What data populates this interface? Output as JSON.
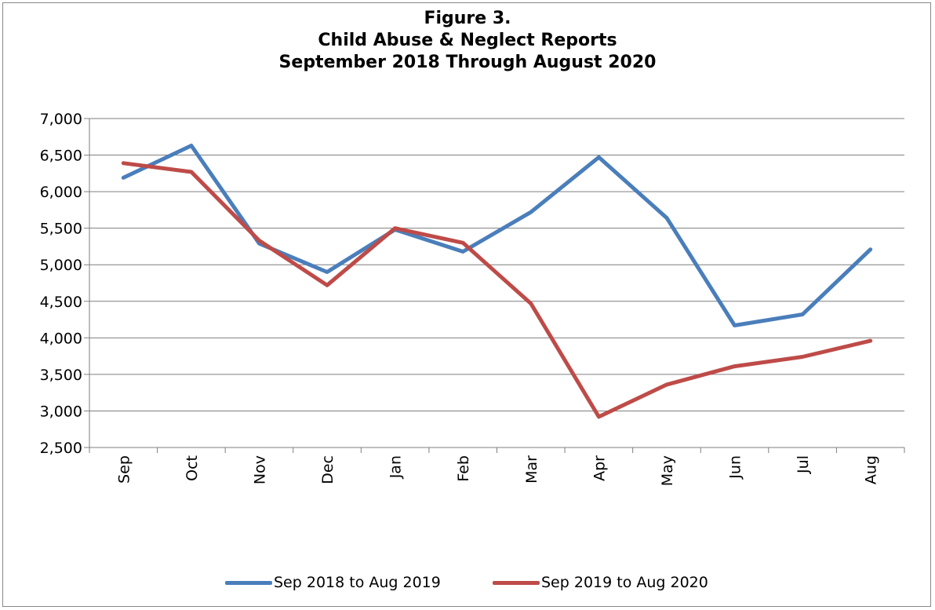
{
  "chart_data": {
    "type": "line",
    "title_lines": [
      "Figure 3.",
      "Child Abuse & Neglect Reports",
      "September 2018 Through August 2020"
    ],
    "categories": [
      "Sep",
      "Oct",
      "Nov",
      "Dec",
      "Jan",
      "Feb",
      "Mar",
      "Apr",
      "May",
      "Jun",
      "Jul",
      "Aug"
    ],
    "series": [
      {
        "name": "Sep 2018 to Aug 2019",
        "color": "#4A7EBB",
        "values": [
          6190,
          6630,
          5290,
          4900,
          5480,
          5180,
          5720,
          6470,
          5640,
          4170,
          4320,
          5210
        ]
      },
      {
        "name": "Sep 2019 to Aug 2020",
        "color": "#BE4B48",
        "values": [
          6390,
          6270,
          5330,
          4720,
          5500,
          5300,
          4470,
          2920,
          3360,
          3610,
          3740,
          3960
        ]
      }
    ],
    "ylim": [
      2500,
      7000
    ],
    "ytick_step": 500,
    "ytick_labels": [
      "2,500",
      "3,000",
      "3,500",
      "4,000",
      "4,500",
      "5,000",
      "5,500",
      "6,000",
      "6,500",
      "7,000"
    ],
    "xlabel": "",
    "ylabel": "",
    "grid": true,
    "legend_position": "bottom"
  }
}
